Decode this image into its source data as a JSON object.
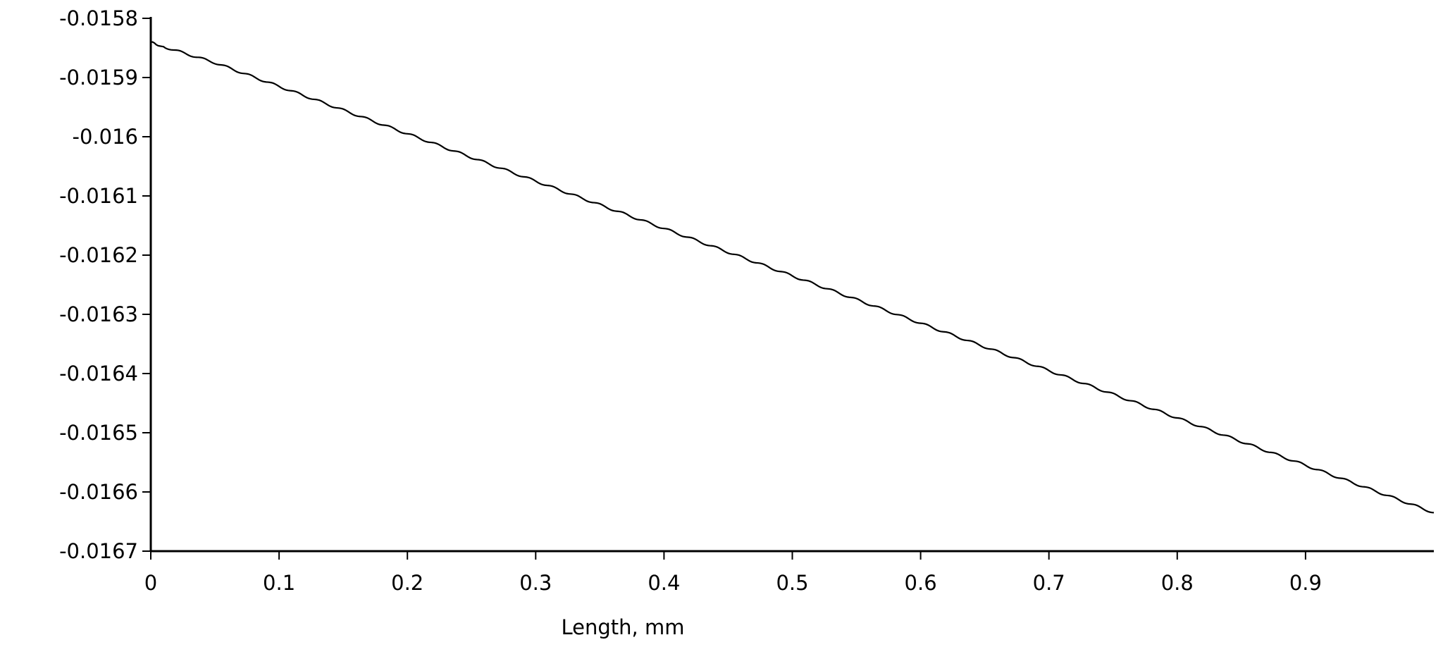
{
  "chart_data": {
    "type": "line",
    "title": "",
    "xlabel": "Length, mm",
    "ylabel": "",
    "xlim": [
      0,
      1.0
    ],
    "ylim": [
      -0.0167,
      -0.0158
    ],
    "grid": false,
    "legend": "none",
    "x_ticks": [
      "0",
      "0.1",
      "0.2",
      "0.3",
      "0.4",
      "0.5",
      "0.6",
      "0.7",
      "0.8",
      "0.9"
    ],
    "x_tick_values": [
      0,
      0.1,
      0.2,
      0.3,
      0.4,
      0.5,
      0.6,
      0.7,
      0.8,
      0.9
    ],
    "y_ticks": [
      "-0.0158",
      "-0.0159",
      "-0.016",
      "-0.0161",
      "-0.0162",
      "-0.0163",
      "-0.0164",
      "-0.0165",
      "-0.0166",
      "-0.0167"
    ],
    "y_tick_values": [
      -0.0158,
      -0.0159,
      -0.016,
      -0.0161,
      -0.0162,
      -0.0163,
      -0.0164,
      -0.0165,
      -0.0166,
      -0.0167
    ],
    "series": [
      {
        "color": "#000000",
        "x": [
          0,
          0.002,
          0.005,
          0.01,
          0.05,
          0.1,
          0.15,
          0.2,
          0.25,
          0.3,
          0.35,
          0.4,
          0.45,
          0.5,
          0.55,
          0.6,
          0.65,
          0.7,
          0.75,
          0.8,
          0.85,
          0.9,
          0.95,
          1.0
        ],
        "y": [
          -0.01584,
          -0.01584,
          -0.015846,
          -0.015848,
          -0.015875,
          -0.015915,
          -0.015955,
          -0.015995,
          -0.016035,
          -0.016075,
          -0.016115,
          -0.016155,
          -0.016195,
          -0.016235,
          -0.016275,
          -0.016315,
          -0.016355,
          -0.016395,
          -0.016435,
          -0.016475,
          -0.016515,
          -0.016555,
          -0.016595,
          -0.016635
        ]
      }
    ]
  }
}
